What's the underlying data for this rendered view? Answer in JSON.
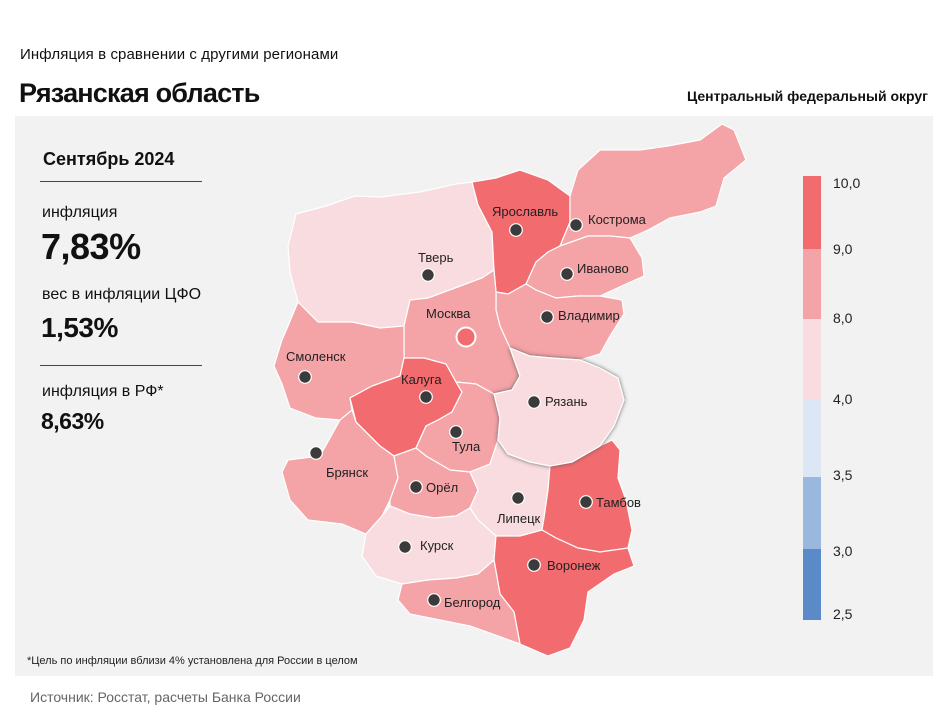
{
  "header": {
    "subtitle": "Инфляция  в сравнении  с другими  регионами",
    "title": "Рязанская область",
    "district": "Центральный федеральный округ"
  },
  "stats": {
    "month": "Сентябрь 2024",
    "inflation_label": "инфляция",
    "inflation_value": "7,83%",
    "weight_label": "вес в инфляции  ЦФО",
    "weight_value": "1,53%",
    "rf_label": "инфляция  в РФ*",
    "rf_value": "8,63%"
  },
  "footnote": "*Цель по инфляции вблизи 4% установлена для России в целом",
  "source": "Источник: Росстат, расчеты Банка России",
  "colors": {
    "panel_bg": "#f2f2f2",
    "bin_9_10": "#f26b6f",
    "bin_8_9": "#f4a3a6",
    "bin_4_8": "#f8dcdf",
    "bin_35_4": "#dce6f4",
    "bin_3_35": "#9ab7de",
    "bin_25_3": "#5b8ac8",
    "city_dot": "#3b3b3b",
    "highlight_shadow": "#777777"
  },
  "legend": {
    "labels": [
      "10,0",
      "9,0",
      "8,0",
      "4,0",
      "3,5",
      "3,0",
      "2,5"
    ]
  },
  "regions": [
    {
      "name": "Ярославль",
      "bin": "9-10"
    },
    {
      "name": "Кострома",
      "bin": "8-9"
    },
    {
      "name": "Тверь",
      "bin": "4-8"
    },
    {
      "name": "Иваново",
      "bin": "8-9"
    },
    {
      "name": "Москва",
      "bin": "8-9"
    },
    {
      "name": "Владимир",
      "bin": "8-9"
    },
    {
      "name": "Смоленск",
      "bin": "8-9"
    },
    {
      "name": "Калуга",
      "bin": "9-10"
    },
    {
      "name": "Рязань",
      "bin": "4-8",
      "highlighted": true
    },
    {
      "name": "Тула",
      "bin": "8-9"
    },
    {
      "name": "Брянск",
      "bin": "8-9"
    },
    {
      "name": "Орёл",
      "bin": "8-9"
    },
    {
      "name": "Липецк",
      "bin": "4-8"
    },
    {
      "name": "Тамбов",
      "bin": "9-10"
    },
    {
      "name": "Курск",
      "bin": "4-8"
    },
    {
      "name": "Воронеж",
      "bin": "9-10"
    },
    {
      "name": "Белгород",
      "bin": "8-9"
    }
  ]
}
